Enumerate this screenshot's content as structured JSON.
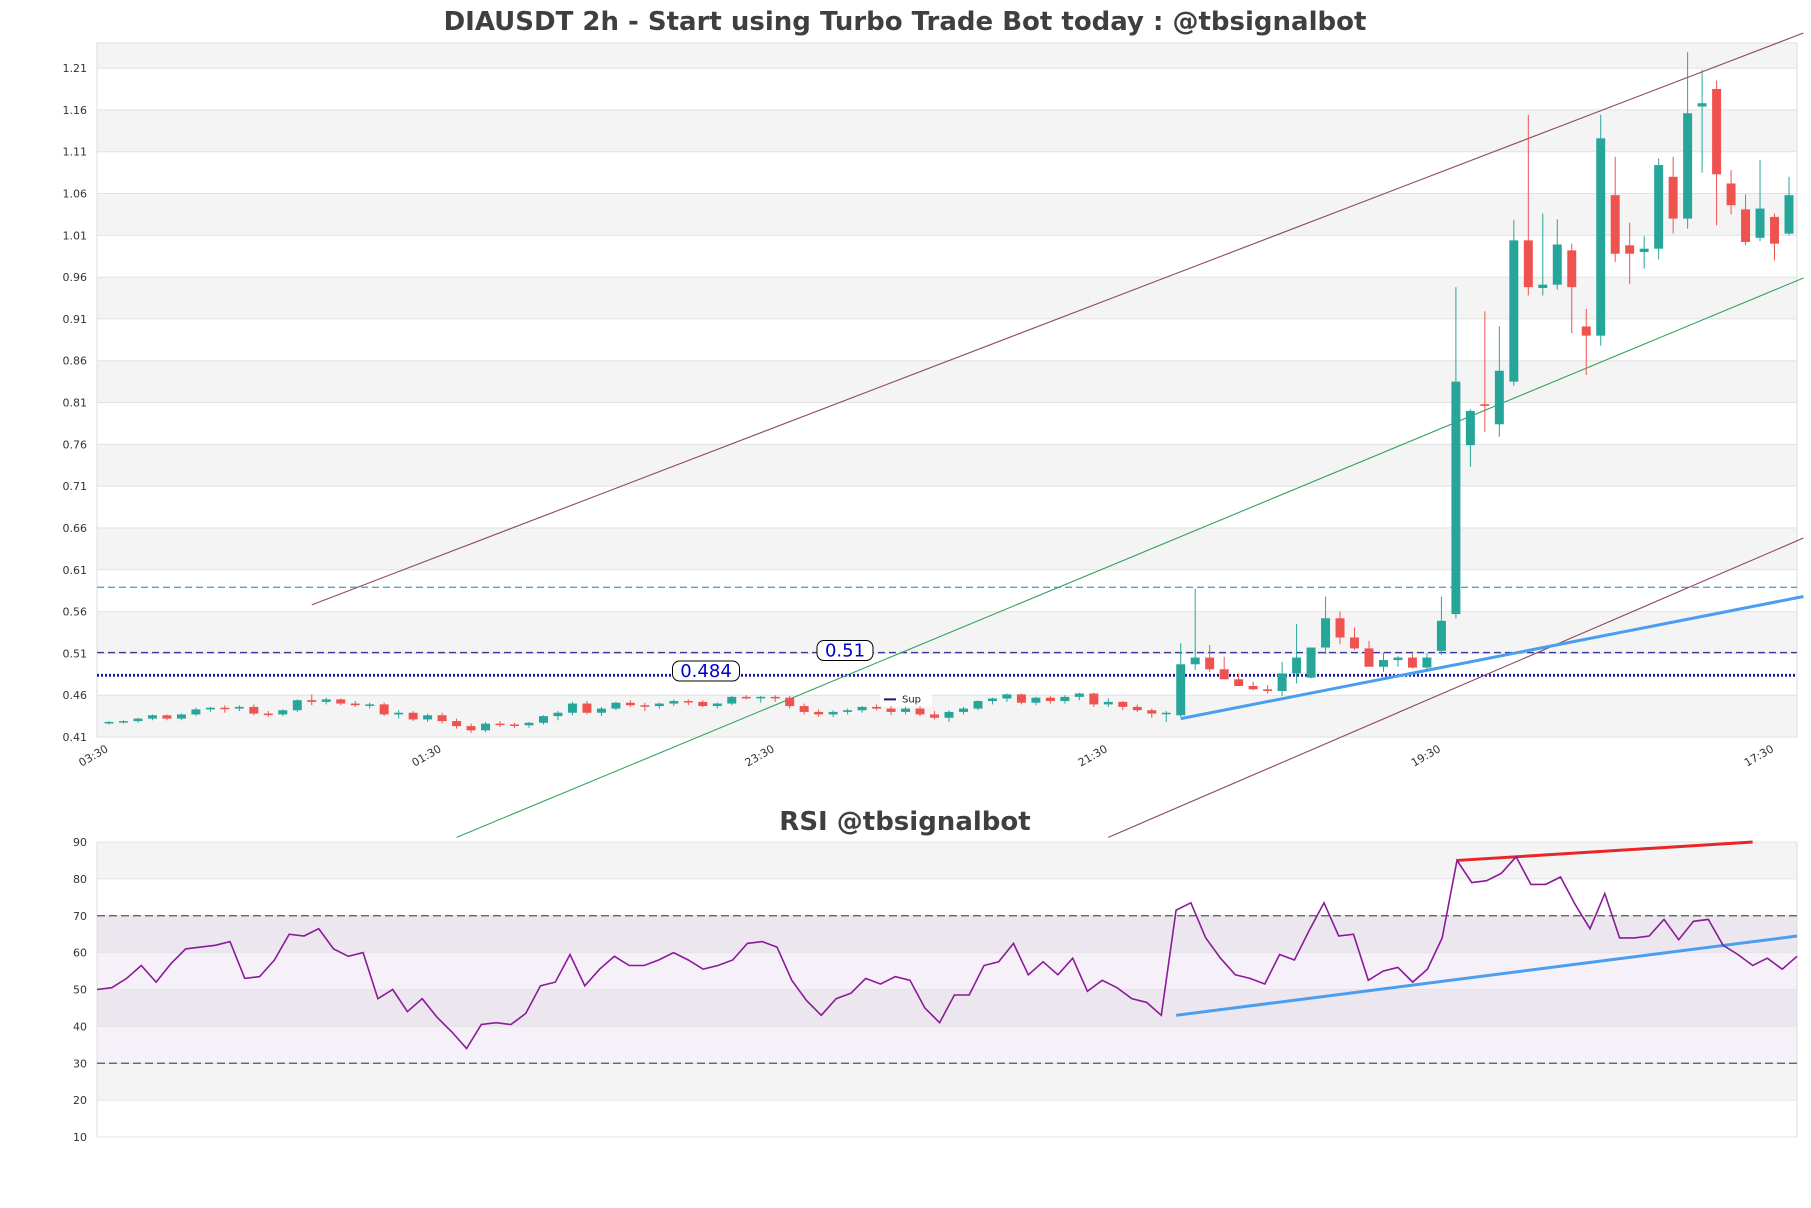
{
  "main_title": "DIAUSDT 2h - Start using Turbo Trade Bot today : @tbsignalbot",
  "rsi_title": "RSI @tbsignalbot",
  "legend_label": "Sup",
  "level_labels": {
    "upper": "0.51",
    "lower": "0.484"
  },
  "colors": {
    "up": "#26a69a",
    "down": "#ef5350",
    "rsi_line": "#8b1a9b",
    "trend_blue": "#4a9ef0",
    "trend_red": "#e8262a",
    "channel": "#8e4a5e",
    "mid_channel": "#3aa35e",
    "resistance_dash": "#4aa8d8",
    "level_dash": "#3a3a9e"
  },
  "chart_data": [
    {
      "type": "candlestick",
      "title": "DIAUSDT 2h - Start using Turbo Trade Bot today : @tbsignalbot",
      "ylim": [
        0.41,
        1.24
      ],
      "yticks": [
        "0.41",
        "0.46",
        "0.51",
        "0.56",
        "0.61",
        "0.66",
        "0.71",
        "0.76",
        "0.81",
        "0.86",
        "0.91",
        "0.96",
        "1.01",
        "1.06",
        "1.11",
        "1.16",
        "1.21"
      ],
      "xticks": [
        "03:30",
        "01:30",
        "23:30",
        "21:30",
        "19:30",
        "17:30"
      ],
      "xtick_index": [
        0,
        23,
        46,
        69,
        92,
        115
      ],
      "horizontal_levels": [
        0.589,
        0.511,
        0.4845,
        0.483
      ],
      "ohlc": [
        [
          0.427,
          0.429,
          0.425,
          0.428
        ],
        [
          0.428,
          0.43,
          0.426,
          0.429
        ],
        [
          0.429,
          0.433,
          0.427,
          0.432
        ],
        [
          0.432,
          0.437,
          0.43,
          0.436
        ],
        [
          0.436,
          0.437,
          0.43,
          0.432
        ],
        [
          0.432,
          0.438,
          0.43,
          0.437
        ],
        [
          0.437,
          0.445,
          0.435,
          0.443
        ],
        [
          0.443,
          0.446,
          0.44,
          0.445
        ],
        [
          0.445,
          0.448,
          0.439,
          0.444
        ],
        [
          0.444,
          0.448,
          0.441,
          0.446
        ],
        [
          0.446,
          0.449,
          0.436,
          0.438
        ],
        [
          0.438,
          0.441,
          0.434,
          0.437
        ],
        [
          0.437,
          0.443,
          0.435,
          0.442
        ],
        [
          0.442,
          0.455,
          0.44,
          0.454
        ],
        [
          0.454,
          0.461,
          0.448,
          0.452
        ],
        [
          0.452,
          0.457,
          0.449,
          0.455
        ],
        [
          0.455,
          0.456,
          0.448,
          0.45
        ],
        [
          0.45,
          0.453,
          0.446,
          0.448
        ],
        [
          0.448,
          0.451,
          0.444,
          0.449
        ],
        [
          0.449,
          0.451,
          0.435,
          0.437
        ],
        [
          0.437,
          0.442,
          0.432,
          0.439
        ],
        [
          0.439,
          0.441,
          0.429,
          0.431
        ],
        [
          0.431,
          0.438,
          0.428,
          0.436
        ],
        [
          0.436,
          0.439,
          0.426,
          0.429
        ],
        [
          0.429,
          0.432,
          0.42,
          0.423
        ],
        [
          0.423,
          0.426,
          0.415,
          0.418
        ],
        [
          0.418,
          0.428,
          0.416,
          0.426
        ],
        [
          0.426,
          0.429,
          0.422,
          0.425
        ],
        [
          0.425,
          0.427,
          0.421,
          0.424
        ],
        [
          0.424,
          0.428,
          0.421,
          0.427
        ],
        [
          0.427,
          0.436,
          0.425,
          0.435
        ],
        [
          0.435,
          0.441,
          0.43,
          0.439
        ],
        [
          0.439,
          0.452,
          0.436,
          0.45
        ],
        [
          0.45,
          0.453,
          0.437,
          0.439
        ],
        [
          0.439,
          0.446,
          0.435,
          0.444
        ],
        [
          0.444,
          0.452,
          0.442,
          0.451
        ],
        [
          0.451,
          0.454,
          0.446,
          0.448
        ],
        [
          0.448,
          0.451,
          0.441,
          0.447
        ],
        [
          0.447,
          0.451,
          0.444,
          0.45
        ],
        [
          0.45,
          0.455,
          0.447,
          0.453
        ],
        [
          0.453,
          0.455,
          0.448,
          0.452
        ],
        [
          0.452,
          0.454,
          0.446,
          0.447
        ],
        [
          0.447,
          0.451,
          0.444,
          0.45
        ],
        [
          0.45,
          0.459,
          0.448,
          0.458
        ],
        [
          0.458,
          0.46,
          0.455,
          0.457
        ],
        [
          0.457,
          0.459,
          0.451,
          0.458
        ],
        [
          0.458,
          0.46,
          0.452,
          0.457
        ],
        [
          0.457,
          0.459,
          0.444,
          0.447
        ],
        [
          0.447,
          0.45,
          0.437,
          0.44
        ],
        [
          0.44,
          0.443,
          0.434,
          0.437
        ],
        [
          0.437,
          0.442,
          0.434,
          0.44
        ],
        [
          0.44,
          0.444,
          0.437,
          0.442
        ],
        [
          0.442,
          0.447,
          0.439,
          0.446
        ],
        [
          0.446,
          0.449,
          0.442,
          0.444
        ],
        [
          0.444,
          0.448,
          0.436,
          0.44
        ],
        [
          0.44,
          0.446,
          0.437,
          0.444
        ],
        [
          0.444,
          0.448,
          0.435,
          0.437
        ],
        [
          0.437,
          0.441,
          0.431,
          0.433
        ],
        [
          0.433,
          0.442,
          0.428,
          0.44
        ],
        [
          0.44,
          0.446,
          0.437,
          0.444
        ],
        [
          0.444,
          0.454,
          0.442,
          0.453
        ],
        [
          0.453,
          0.457,
          0.449,
          0.456
        ],
        [
          0.456,
          0.462,
          0.452,
          0.461
        ],
        [
          0.461,
          0.462,
          0.449,
          0.451
        ],
        [
          0.451,
          0.458,
          0.448,
          0.457
        ],
        [
          0.457,
          0.459,
          0.45,
          0.453
        ],
        [
          0.453,
          0.46,
          0.45,
          0.458
        ],
        [
          0.458,
          0.463,
          0.454,
          0.462
        ],
        [
          0.462,
          0.463,
          0.446,
          0.449
        ],
        [
          0.449,
          0.456,
          0.446,
          0.452
        ],
        [
          0.452,
          0.453,
          0.442,
          0.446
        ],
        [
          0.446,
          0.449,
          0.44,
          0.442
        ],
        [
          0.442,
          0.444,
          0.433,
          0.438
        ],
        [
          0.438,
          0.441,
          0.428,
          0.439
        ],
        [
          0.436,
          0.522,
          0.434,
          0.497
        ],
        [
          0.497,
          0.587,
          0.49,
          0.505
        ],
        [
          0.505,
          0.52,
          0.488,
          0.491
        ],
        [
          0.491,
          0.506,
          0.48,
          0.479
        ],
        [
          0.479,
          0.486,
          0.471,
          0.471
        ],
        [
          0.471,
          0.476,
          0.466,
          0.467
        ],
        [
          0.467,
          0.472,
          0.462,
          0.465
        ],
        [
          0.465,
          0.5,
          0.459,
          0.486
        ],
        [
          0.486,
          0.545,
          0.474,
          0.505
        ],
        [
          0.481,
          0.517,
          0.48,
          0.517
        ],
        [
          0.517,
          0.578,
          0.509,
          0.552
        ],
        [
          0.552,
          0.56,
          0.521,
          0.529
        ],
        [
          0.529,
          0.541,
          0.514,
          0.516
        ],
        [
          0.516,
          0.525,
          0.496,
          0.494
        ],
        [
          0.494,
          0.511,
          0.488,
          0.502
        ],
        [
          0.502,
          0.507,
          0.494,
          0.505
        ],
        [
          0.505,
          0.51,
          0.492,
          0.493
        ],
        [
          0.493,
          0.51,
          0.49,
          0.505
        ],
        [
          0.513,
          0.578,
          0.508,
          0.549
        ],
        [
          0.557,
          0.948,
          0.552,
          0.835
        ],
        [
          0.759,
          0.802,
          0.733,
          0.8
        ],
        [
          0.808,
          0.919,
          0.775,
          0.806
        ],
        [
          0.784,
          0.901,
          0.769,
          0.848
        ],
        [
          0.835,
          1.028,
          0.83,
          1.004
        ],
        [
          1.004,
          1.154,
          0.938,
          0.948
        ],
        [
          0.947,
          1.036,
          0.938,
          0.951
        ],
        [
          0.951,
          1.029,
          0.945,
          0.999
        ],
        [
          0.992,
          1.0,
          0.893,
          0.948
        ],
        [
          0.901,
          0.922,
          0.843,
          0.89
        ],
        [
          0.89,
          1.154,
          0.878,
          1.126
        ],
        [
          1.058,
          1.104,
          0.978,
          0.988
        ],
        [
          0.998,
          1.025,
          0.952,
          0.988
        ],
        [
          0.99,
          1.009,
          0.97,
          0.994
        ],
        [
          0.994,
          1.102,
          0.981,
          1.094
        ],
        [
          1.08,
          1.104,
          1.012,
          1.03
        ],
        [
          1.03,
          1.229,
          1.018,
          1.156
        ],
        [
          1.164,
          1.208,
          1.085,
          1.168
        ],
        [
          1.185,
          1.195,
          1.022,
          1.083
        ],
        [
          1.072,
          1.088,
          1.035,
          1.046
        ],
        [
          1.041,
          1.059,
          0.998,
          1.002
        ],
        [
          1.007,
          1.1,
          1.003,
          1.042
        ],
        [
          1.032,
          1.036,
          0.98,
          1.0
        ],
        [
          1.012,
          1.08,
          1.01,
          1.058
        ]
      ]
    },
    {
      "type": "line",
      "title": "RSI @tbsignalbot",
      "ylim": [
        10,
        90
      ],
      "yticks": [
        "10",
        "20",
        "30",
        "40",
        "50",
        "60",
        "70",
        "80",
        "90"
      ],
      "reference_lines": [
        30,
        70
      ],
      "series": [
        {
          "values": [
            50,
            50.5,
            53,
            56.5,
            52,
            57,
            61,
            61.5,
            62,
            63,
            53,
            53.5,
            58,
            65,
            64.5,
            66.5,
            61,
            59,
            60,
            47.5,
            50,
            44,
            47.5,
            42.5,
            38.5,
            34,
            40.5,
            41,
            40.5,
            43.5,
            51,
            52,
            59.5,
            51,
            55.5,
            59,
            56.5,
            56.5,
            58,
            60,
            58,
            55.5,
            56.5,
            58,
            62.5,
            63,
            61.5,
            52.5,
            47,
            43,
            47.5,
            49,
            53,
            51.5,
            53.5,
            52.5,
            45,
            41,
            48.5,
            48.5,
            56.5,
            57.5,
            62.5,
            54,
            57.5,
            54,
            58.5,
            49.5,
            52.5,
            50.5,
            47.5,
            46.5,
            43,
            71.5,
            73.5,
            64,
            58.5,
            54,
            53,
            51.5,
            59.5,
            58,
            66,
            73.5,
            64.5,
            65,
            52.5,
            55,
            56,
            52,
            55.5,
            64,
            85,
            79,
            79.5,
            81.5,
            86,
            78.5,
            78.5,
            80.5,
            73,
            66.5,
            76,
            64,
            64,
            64.5,
            69,
            63.5,
            68.5,
            69,
            62,
            59.5,
            56.5,
            58.5,
            55.5,
            59
          ]
        }
      ]
    }
  ]
}
